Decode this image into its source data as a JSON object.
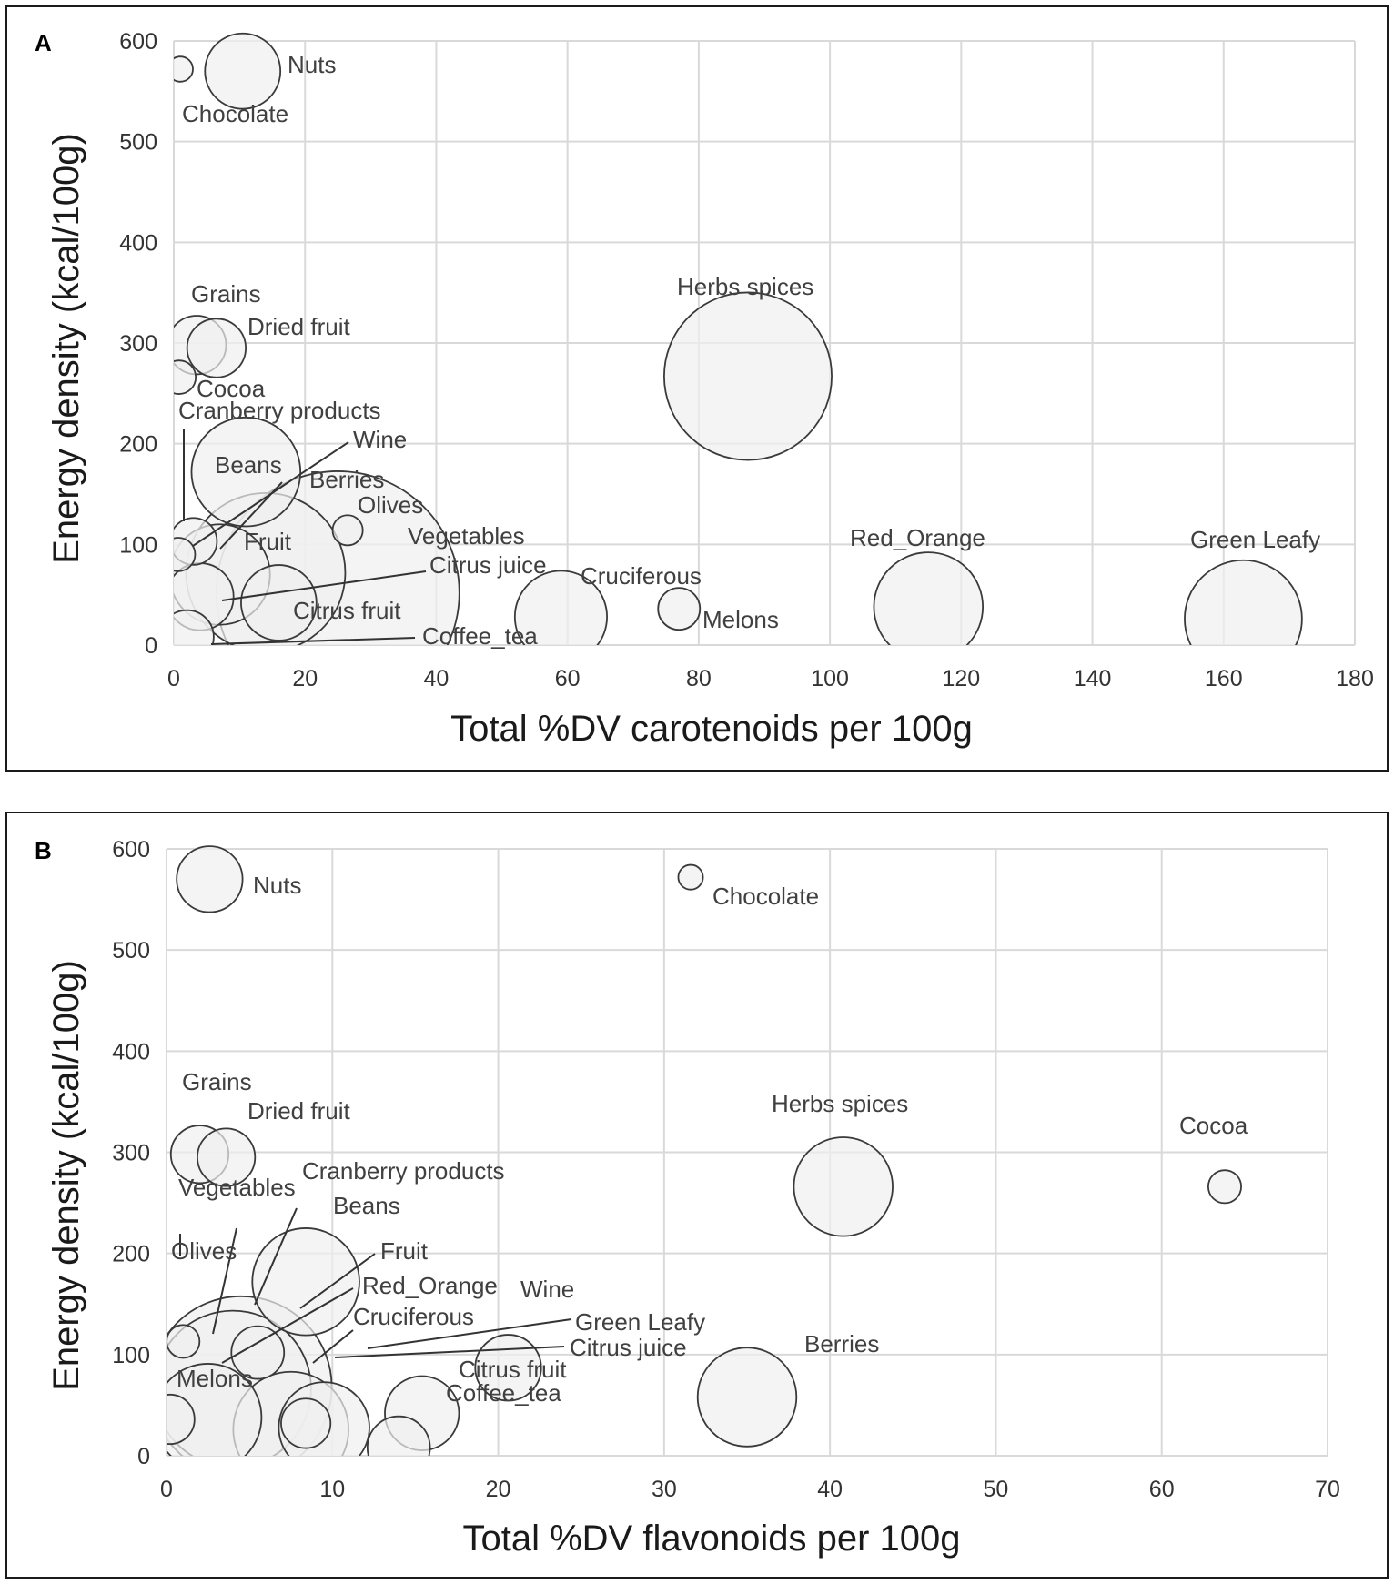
{
  "chart_data": [
    {
      "type": "bubble",
      "panel_label": "A",
      "title": "",
      "xlabel": "Total %DV carotenoids per 100g",
      "ylabel": "Energy density (kcal/100g)",
      "xlim": [
        0,
        180
      ],
      "ylim": [
        0,
        600
      ],
      "xticks": [
        0,
        20,
        40,
        60,
        80,
        100,
        120,
        140,
        160,
        180
      ],
      "yticks": [
        0,
        100,
        200,
        300,
        400,
        500,
        600
      ],
      "grid": true,
      "points": [
        {
          "name": "Chocolate",
          "x": 1,
          "y": 572,
          "size": 1.5
        },
        {
          "name": "Nuts",
          "x": 10.5,
          "y": 570,
          "size": 4.5
        },
        {
          "name": "Grains",
          "x": 3.5,
          "y": 298,
          "size": 3.5
        },
        {
          "name": "Dried fruit",
          "x": 6.5,
          "y": 295,
          "size": 3.5
        },
        {
          "name": "Cocoa",
          "x": 0.8,
          "y": 266,
          "size": 2
        },
        {
          "name": "Beans",
          "x": 11,
          "y": 172,
          "size": 6.5
        },
        {
          "name": "Cranberry products",
          "x": 0.7,
          "y": 90,
          "size": 2
        },
        {
          "name": "Wine",
          "x": 3,
          "y": 103,
          "size": 2.8
        },
        {
          "name": "Olives",
          "x": 26.5,
          "y": 114,
          "size": 1.8
        },
        {
          "name": "Berries",
          "x": 7,
          "y": 70,
          "size": 6
        },
        {
          "name": "Fruit",
          "x": 14,
          "y": 72,
          "size": 9.5
        },
        {
          "name": "Vegetables",
          "x": 25,
          "y": 52,
          "size": 14.5
        },
        {
          "name": "Citrus juice",
          "x": 4,
          "y": 48,
          "size": 4
        },
        {
          "name": "Citrus fruit",
          "x": 16,
          "y": 42,
          "size": 4.5
        },
        {
          "name": "Coffee_tea",
          "x": 2,
          "y": 8,
          "size": 3.2
        },
        {
          "name": "Cruciferous",
          "x": 59,
          "y": 28,
          "size": 5.5
        },
        {
          "name": "Melons",
          "x": 77,
          "y": 36,
          "size": 2.5
        },
        {
          "name": "Herbs spices",
          "x": 87.5,
          "y": 267,
          "size": 10
        },
        {
          "name": "Red_Orange",
          "x": 115,
          "y": 38,
          "size": 6.5
        },
        {
          "name": "Green Leafy",
          "x": 163,
          "y": 26,
          "size": 7
        }
      ],
      "labels": {
        "Chocolate": "Chocolate",
        "Nuts": "Nuts",
        "Grains": "Grains",
        "Dried fruit": "Dried fruit",
        "Cocoa": "Cocoa",
        "Cranberry products": "Cranberry products",
        "Wine": "Wine",
        "Beans": "Beans",
        "Berries": "Berries",
        "Olives": "Olives",
        "Fruit": "Fruit",
        "Vegetables": "Vegetables",
        "Citrus juice": "Citrus juice",
        "Citrus fruit": "Citrus fruit",
        "Coffee_tea": "Coffee_tea",
        "Cruciferous": "Cruciferous",
        "Melons": "Melons",
        "Herbs spices": "Herbs spices",
        "Red_Orange": "Red_Orange",
        "Green Leafy": "Green Leafy"
      }
    },
    {
      "type": "bubble",
      "panel_label": "B",
      "title": "",
      "xlabel": "Total %DV flavonoids per 100g",
      "ylabel": "Energy density (kcal/100g)",
      "xlim": [
        0,
        70
      ],
      "ylim": [
        0,
        600
      ],
      "xticks": [
        0,
        10,
        20,
        30,
        40,
        50,
        60,
        70
      ],
      "yticks": [
        0,
        100,
        200,
        300,
        400,
        500,
        600
      ],
      "grid": true,
      "points": [
        {
          "name": "Nuts",
          "x": 2.6,
          "y": 570,
          "size": 4
        },
        {
          "name": "Chocolate",
          "x": 31.6,
          "y": 572,
          "size": 1.5
        },
        {
          "name": "Grains",
          "x": 2,
          "y": 298,
          "size": 3.5
        },
        {
          "name": "Dried fruit",
          "x": 3.6,
          "y": 295,
          "size": 3.5
        },
        {
          "name": "Herbs spices",
          "x": 40.8,
          "y": 266,
          "size": 6
        },
        {
          "name": "Cocoa",
          "x": 63.8,
          "y": 266,
          "size": 2
        },
        {
          "name": "Beans",
          "x": 8.4,
          "y": 172,
          "size": 6.5
        },
        {
          "name": "Olives",
          "x": 1,
          "y": 113,
          "size": 2
        },
        {
          "name": "Cranberry products",
          "x": 5.5,
          "y": 102,
          "size": 3.2
        },
        {
          "name": "Vegetables",
          "x": 4.5,
          "y": 68,
          "size": 11
        },
        {
          "name": "Fruit",
          "x": 4,
          "y": 66,
          "size": 9.5
        },
        {
          "name": "Red_Orange",
          "x": 2.5,
          "y": 38,
          "size": 6.5
        },
        {
          "name": "Melons",
          "x": 0.2,
          "y": 36,
          "size": 3
        },
        {
          "name": "Wine",
          "x": 20.6,
          "y": 87,
          "size": 4
        },
        {
          "name": "Berries",
          "x": 35,
          "y": 58,
          "size": 6
        },
        {
          "name": "Cruciferous",
          "x": 9.5,
          "y": 28,
          "size": 5.5
        },
        {
          "name": "Green Leafy",
          "x": 7.5,
          "y": 26,
          "size": 7
        },
        {
          "name": "Citrus juice",
          "x": 8.4,
          "y": 32,
          "size": 3
        },
        {
          "name": "Citrus fruit",
          "x": 15.4,
          "y": 42,
          "size": 4.5
        },
        {
          "name": "Coffee_tea",
          "x": 14,
          "y": 8,
          "size": 3.8
        }
      ],
      "labels": {
        "Nuts": "Nuts",
        "Chocolate": "Chocolate",
        "Grains": "Grains",
        "Dried fruit": "Dried fruit",
        "Herbs spices": "Herbs spices",
        "Cocoa": "Cocoa",
        "Cranberry products": "Cranberry products",
        "Vegetables": "Vegetables",
        "Beans": "Beans",
        "Olives": "Olives",
        "Fruit": "Fruit",
        "Red_Orange": "Red_Orange",
        "Wine": "Wine",
        "Cruciferous": "Cruciferous",
        "Green Leafy": "Green Leafy",
        "Citrus juice": "Citrus juice",
        "Melons": "Melons",
        "Citrus fruit": "Citrus fruit",
        "Coffee_tea": "Coffee_tea",
        "Berries": "Berries"
      }
    }
  ]
}
